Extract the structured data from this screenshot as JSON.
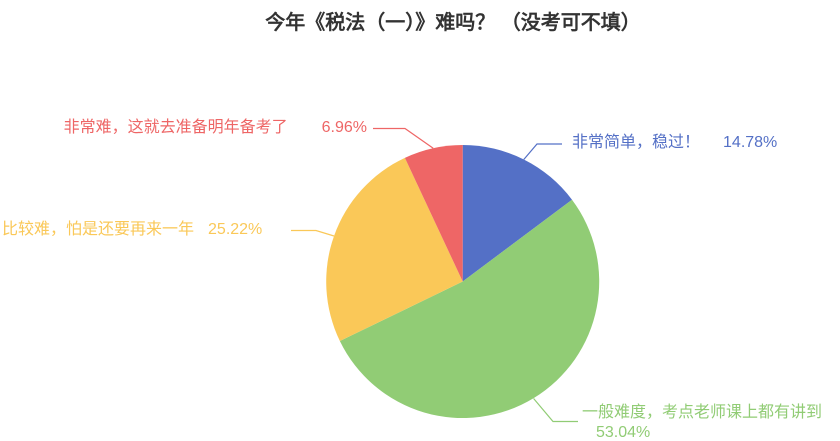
{
  "title": "今年《税法（一）》难吗？ （没考可不填）",
  "chart_data": {
    "type": "pie",
    "title": "今年《税法（一）》难吗？ （没考可不填）",
    "legend": "none",
    "labels_position": "outside-with-leader-lines",
    "direction": "clockwise",
    "start_angle": "12-o-clock",
    "background": "#ffffff",
    "slices": [
      {
        "label": "非常简单，稳过！",
        "value": 14.78,
        "percent_text": "14.78%",
        "color": "#5470C6"
      },
      {
        "label": "一般难度，考点老师课上都有讲到",
        "value": 53.04,
        "percent_text": "53.04%",
        "color": "#91CC75"
      },
      {
        "label": "比较难，怕是还要再来一年",
        "value": 25.22,
        "percent_text": "25.22%",
        "color": "#FAC858"
      },
      {
        "label": "非常难，这就去准备明年备考了",
        "value": 6.96,
        "percent_text": "6.96%",
        "color": "#EE6666"
      }
    ]
  }
}
